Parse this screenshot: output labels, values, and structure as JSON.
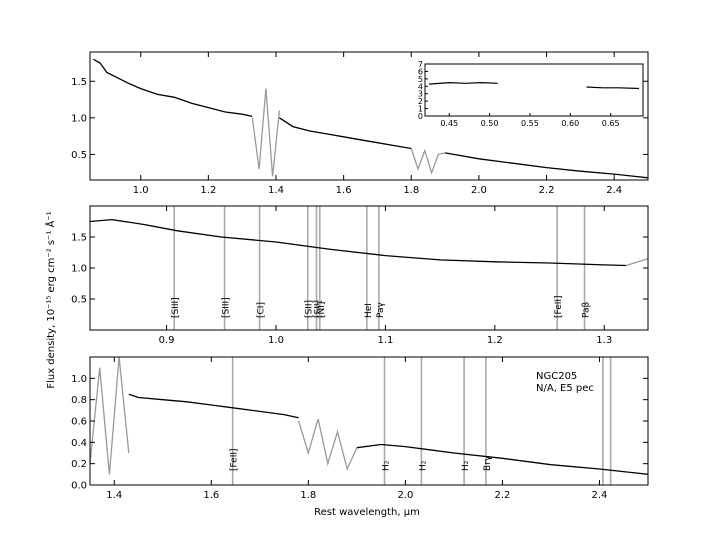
{
  "figure": {
    "xlabel": "Rest wavelength, μm",
    "ylabel": "Flux density, 10⁻¹⁵ erg cm⁻² s⁻¹ Å⁻¹"
  },
  "chart_data": [
    {
      "type": "line",
      "panel": "top",
      "xlim": [
        0.85,
        2.5
      ],
      "ylim": [
        0.15,
        1.9
      ],
      "xticks": [
        1.0,
        1.2,
        1.4,
        1.6,
        1.8,
        2.0,
        2.2,
        2.4
      ],
      "yticks": [
        0.5,
        1.0,
        1.5
      ],
      "series": [
        {
          "color": "#000000",
          "x": [
            0.86,
            0.88,
            0.9,
            0.93,
            0.96,
            1.0,
            1.05,
            1.1,
            1.15,
            1.2,
            1.25,
            1.3,
            1.33
          ],
          "y": [
            1.8,
            1.75,
            1.62,
            1.55,
            1.48,
            1.4,
            1.32,
            1.28,
            1.2,
            1.14,
            1.08,
            1.05,
            1.02
          ]
        },
        {
          "color": "#999999",
          "x": [
            1.33,
            1.35,
            1.37,
            1.39,
            1.41
          ],
          "y": [
            1.0,
            0.3,
            1.4,
            0.2,
            1.1
          ]
        },
        {
          "color": "#000000",
          "x": [
            1.41,
            1.45,
            1.5,
            1.55,
            1.6,
            1.65,
            1.7,
            1.75,
            1.8
          ],
          "y": [
            1.0,
            0.88,
            0.82,
            0.78,
            0.74,
            0.7,
            0.66,
            0.62,
            0.58
          ]
        },
        {
          "color": "#999999",
          "x": [
            1.8,
            1.82,
            1.84,
            1.86,
            1.88,
            1.9
          ],
          "y": [
            0.58,
            0.3,
            0.55,
            0.25,
            0.5,
            0.52
          ]
        },
        {
          "color": "#000000",
          "x": [
            1.9,
            2.0,
            2.1,
            2.2,
            2.3,
            2.4,
            2.5
          ],
          "y": [
            0.52,
            0.44,
            0.38,
            0.32,
            0.27,
            0.23,
            0.18
          ]
        }
      ],
      "inset": {
        "xlim": [
          0.42,
          0.69
        ],
        "ylim": [
          0,
          7
        ],
        "xticks": [
          0.45,
          0.5,
          0.55,
          0.6,
          0.65
        ],
        "yticks": [
          0,
          1,
          2,
          3,
          4,
          5,
          6,
          7
        ],
        "series": [
          {
            "x": [
              0.425,
              0.45,
              0.47,
              0.49,
              0.51
            ],
            "y": [
              4.3,
              4.5,
              4.4,
              4.5,
              4.4
            ]
          },
          {
            "x": [
              0.62,
              0.64,
              0.66,
              0.685
            ],
            "y": [
              3.9,
              3.8,
              3.8,
              3.7
            ]
          }
        ]
      }
    },
    {
      "type": "line",
      "panel": "middle",
      "xlim": [
        0.83,
        1.34
      ],
      "ylim": [
        0.0,
        2.0
      ],
      "xticks": [
        0.9,
        1.0,
        1.1,
        1.2,
        1.3
      ],
      "yticks": [
        0.5,
        1.0,
        1.5
      ],
      "series": [
        {
          "color": "#000000",
          "x": [
            0.83,
            0.85,
            0.88,
            0.91,
            0.95,
            1.0,
            1.05,
            1.1,
            1.15,
            1.2,
            1.25,
            1.3,
            1.32
          ],
          "y": [
            1.75,
            1.78,
            1.7,
            1.6,
            1.5,
            1.42,
            1.3,
            1.2,
            1.13,
            1.1,
            1.08,
            1.05,
            1.04
          ]
        },
        {
          "color": "#999999",
          "x": [
            1.32,
            1.34
          ],
          "y": [
            1.04,
            1.15
          ]
        }
      ],
      "lines": [
        {
          "x": 0.907,
          "label": "[SIII]"
        },
        {
          "x": 0.953,
          "label": "[SIII]"
        },
        {
          "x": 0.985,
          "label": "[CI]"
        },
        {
          "x": 1.029,
          "label": "[SII]"
        },
        {
          "x": 1.037,
          "label": "[SII]"
        },
        {
          "x": 1.04,
          "label": "[NI]"
        },
        {
          "x": 1.083,
          "label": "HeI"
        },
        {
          "x": 1.094,
          "label": "Paγ"
        },
        {
          "x": 1.257,
          "label": "[FeII]"
        },
        {
          "x": 1.282,
          "label": "Paβ"
        }
      ]
    },
    {
      "type": "line",
      "panel": "bottom",
      "xlim": [
        1.35,
        2.5
      ],
      "ylim": [
        0.0,
        1.2
      ],
      "xticks": [
        1.4,
        1.6,
        1.8,
        2.0,
        2.2,
        2.4
      ],
      "yticks": [
        0.0,
        0.2,
        0.4,
        0.6,
        0.8,
        1.0
      ],
      "series": [
        {
          "color": "#999999",
          "x": [
            1.35,
            1.37,
            1.39,
            1.41,
            1.43
          ],
          "y": [
            0.2,
            1.1,
            0.1,
            1.2,
            0.3
          ]
        },
        {
          "color": "#000000",
          "x": [
            1.43,
            1.45,
            1.5,
            1.55,
            1.6,
            1.65,
            1.7,
            1.75,
            1.78
          ],
          "y": [
            0.85,
            0.82,
            0.8,
            0.78,
            0.75,
            0.72,
            0.69,
            0.66,
            0.63
          ]
        },
        {
          "color": "#999999",
          "x": [
            1.78,
            1.8,
            1.82,
            1.84,
            1.86,
            1.88,
            1.9
          ],
          "y": [
            0.6,
            0.3,
            0.62,
            0.2,
            0.5,
            0.15,
            0.35
          ]
        },
        {
          "color": "#000000",
          "x": [
            1.9,
            1.95,
            2.0,
            2.05,
            2.1,
            2.2,
            2.3,
            2.4,
            2.5
          ],
          "y": [
            0.35,
            0.38,
            0.36,
            0.33,
            0.3,
            0.25,
            0.19,
            0.15,
            0.1
          ]
        }
      ],
      "lines": [
        {
          "x": 1.644,
          "label": "[FeII]"
        },
        {
          "x": 1.957,
          "label": "H₂"
        },
        {
          "x": 2.033,
          "label": "H₂"
        },
        {
          "x": 2.121,
          "label": "H₂"
        },
        {
          "x": 2.166,
          "label": "Brγ"
        },
        {
          "x": 2.407,
          "label": ""
        },
        {
          "x": 2.423,
          "label": ""
        }
      ],
      "annotation": [
        "NGC205",
        "N/A,  E5 pec"
      ]
    }
  ]
}
